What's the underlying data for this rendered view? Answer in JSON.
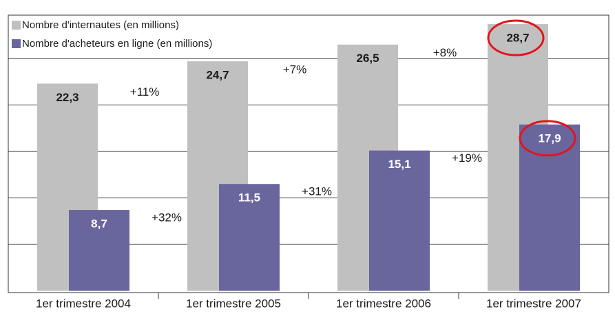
{
  "chart_data": {
    "type": "bar",
    "categories": [
      "1er trimestre 2004",
      "1er trimestre 2005",
      "1er trimestre 2006",
      "1er trimestre 2007"
    ],
    "series": [
      {
        "name": "Nombre d'internautes (en millions)",
        "color": "#c0c0c0",
        "label_color": "#1a1a1a",
        "values": [
          22.3,
          24.7,
          26.5,
          28.7
        ],
        "value_labels": [
          "22,3",
          "24,7",
          "26,5",
          "28,7"
        ],
        "growth_labels": [
          "+11%",
          "+7%",
          "+8%"
        ]
      },
      {
        "name": "Nombre d'acheteurs en ligne (en millions)",
        "color": "#69669e",
        "label_color": "#ffffff",
        "values": [
          8.7,
          11.5,
          15.1,
          17.9
        ],
        "value_labels": [
          "8,7",
          "11,5",
          "15,1",
          "17,9"
        ],
        "growth_labels": [
          "+32%",
          "+31%",
          "+19%"
        ]
      }
    ],
    "ylim": [
      0,
      30
    ],
    "yticks": [
      5,
      10,
      15,
      20,
      25
    ],
    "grid": true,
    "legend": "top-left",
    "highlight_category": 3,
    "highlight_color": "#e3141b"
  }
}
